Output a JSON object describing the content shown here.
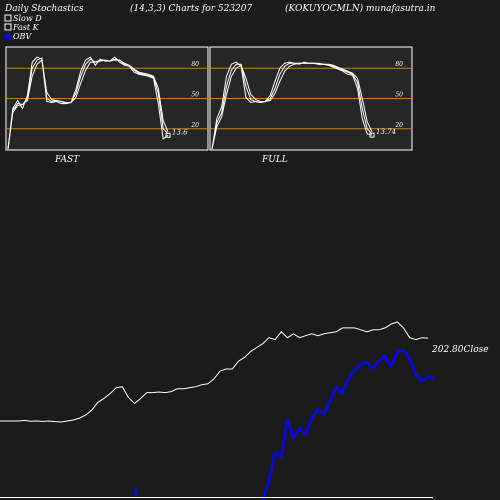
{
  "header": {
    "left": "Daily Stochastics",
    "center": "(14,3,3) Charts for 523207",
    "right": "(KOKUYOCMLN) munafasutra.in"
  },
  "legend": [
    {
      "label": "Slow  D",
      "color": "#ffffff",
      "shape": "hollow-square"
    },
    {
      "label": "Fast K",
      "color": "#ffffff",
      "shape": "hollow-square"
    },
    {
      "label": "OBV",
      "color": "#0a0ad6",
      "shape": "filled-square"
    }
  ],
  "colors": {
    "background": "#1b1b1b",
    "panel": "#262626",
    "grid_line": "#c7811f",
    "line": "#ffffff",
    "obv": "#0a0ad6"
  },
  "chart_data": [
    {
      "type": "line",
      "panel": "FAST",
      "title": "FAST",
      "levels": [
        80,
        50,
        20
      ],
      "ylim": [
        0,
        100
      ],
      "last_value_label": "13.6",
      "series": [
        {
          "values": [
            0,
            40,
            48,
            40,
            53,
            86,
            91,
            89,
            47,
            46,
            47,
            45,
            45,
            46,
            59,
            77,
            88,
            91,
            83,
            89,
            87,
            87,
            91,
            86,
            83,
            82,
            76,
            74,
            73,
            72,
            70,
            45,
            10,
            13.6
          ]
        },
        {
          "values": [
            0,
            38,
            45,
            44,
            50,
            80,
            88,
            90,
            50,
            47,
            48,
            47,
            45,
            46,
            55,
            72,
            84,
            89,
            86,
            88,
            88,
            87,
            89,
            88,
            84,
            83,
            78,
            75,
            74,
            73,
            71,
            55,
            20,
            15
          ]
        },
        {
          "values": [
            0,
            36,
            43,
            44,
            48,
            72,
            84,
            88,
            56,
            49,
            48,
            47,
            46,
            46,
            51,
            65,
            78,
            86,
            86,
            87,
            88,
            87,
            88,
            88,
            85,
            83,
            79,
            76,
            75,
            74,
            72,
            60,
            28,
            17
          ]
        }
      ]
    },
    {
      "type": "line",
      "panel": "FULL",
      "title": "FULL",
      "levels": [
        80,
        50,
        20
      ],
      "ylim": [
        0,
        100
      ],
      "last_value_label": "13.74",
      "series": [
        {
          "values": [
            0,
            30,
            42,
            72,
            84,
            86,
            82,
            51,
            46,
            47,
            46,
            47,
            53,
            67,
            80,
            85,
            86,
            85,
            84,
            86,
            85,
            85,
            84,
            84,
            83,
            81,
            79,
            77,
            74,
            73,
            60,
            30,
            15,
            13.74
          ]
        },
        {
          "values": [
            0,
            26,
            36,
            62,
            78,
            84,
            84,
            62,
            49,
            47,
            46,
            47,
            50,
            60,
            74,
            82,
            85,
            85,
            85,
            85,
            85,
            85,
            84,
            84,
            83,
            82,
            80,
            78,
            76,
            74,
            66,
            40,
            20,
            15
          ]
        },
        {
          "values": [
            0,
            22,
            32,
            54,
            72,
            80,
            83,
            70,
            54,
            49,
            47,
            47,
            48,
            55,
            67,
            77,
            82,
            84,
            85,
            85,
            85,
            85,
            85,
            84,
            84,
            83,
            81,
            79,
            77,
            75,
            70,
            50,
            27,
            17
          ]
        }
      ]
    },
    {
      "type": "line",
      "panel": "price",
      "series": [
        {
          "name": "Close",
          "values": [
            160.5,
            160.5,
            160.5,
            160.5,
            160.8,
            160.4,
            160.5,
            160.3,
            160.5,
            160.2,
            160.0,
            160.5,
            161.0,
            162.0,
            163.5,
            166.0,
            170.0,
            172.0,
            174.5,
            177.5,
            178.0,
            172.5,
            169.5,
            172.0,
            175.0,
            175.0,
            175.3,
            175.0,
            175.5,
            177.0,
            177.0,
            177.5,
            178.0,
            179.0,
            179.5,
            182.0,
            186.0,
            187.0,
            187.0,
            191.0,
            193.0,
            196.0,
            198.0,
            200.0,
            203.0,
            202.0,
            206.0,
            203.0,
            205.0,
            203.0,
            204.0,
            205.0,
            204.0,
            205.0,
            205.5,
            206.0,
            208.0,
            208.0,
            208.0,
            207.0,
            206.0,
            207.0,
            207.0,
            208.0,
            210.0,
            211.0,
            208.0,
            203.0,
            202.0,
            203.0,
            202.8
          ]
        },
        {
          "name": "OBV",
          "values": [
            null,
            null,
            null,
            null,
            null,
            null,
            null,
            null,
            null,
            null,
            null,
            null,
            null,
            null,
            null,
            null,
            null,
            null,
            null,
            null,
            null,
            null,
            null,
            null,
            null,
            null,
            null,
            null,
            null,
            null,
            null,
            null,
            null,
            null,
            null,
            null,
            null,
            null,
            null,
            null,
            null,
            null,
            null,
            0,
            18,
            46,
            42,
            78,
            60,
            70,
            64,
            80,
            88,
            84,
            96,
            110,
            104,
            118,
            126,
            132,
            134,
            128,
            136,
            140,
            130,
            144,
            146,
            138,
            122,
            116,
            120,
            118
          ]
        }
      ],
      "last_value_label": "202.80",
      "label_suffix": "Close"
    }
  ],
  "bottom_marker": {
    "value": 0
  }
}
